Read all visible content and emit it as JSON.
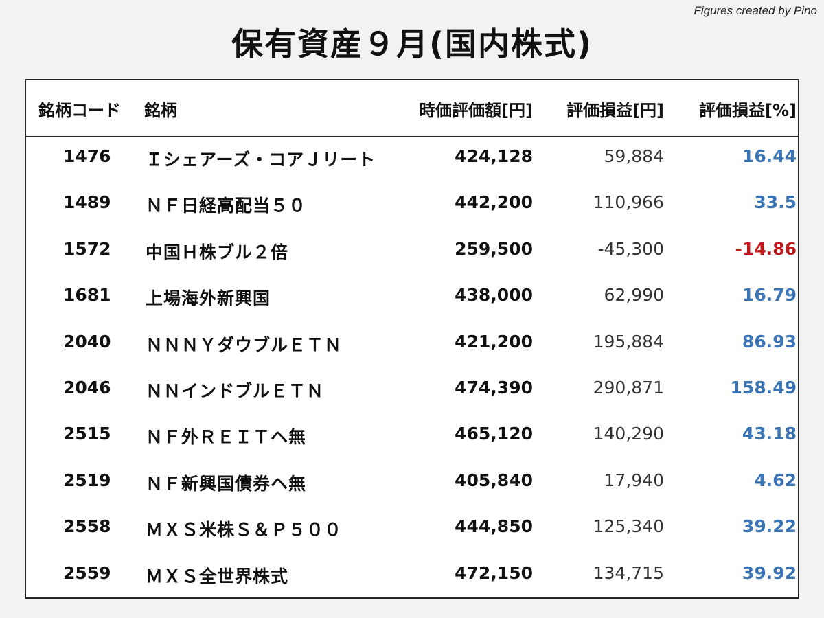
{
  "credit": "Figures created by Pino",
  "title": "保有資産９月(国内株式)",
  "colors": {
    "positive": "#3a74b4",
    "negative": "#c0181a",
    "text": "#111111"
  },
  "table": {
    "headers": [
      "銘柄コード",
      "銘柄",
      "時価評価額[円]",
      "評価損益[円]",
      "評価損益[%]"
    ],
    "rows": [
      {
        "code": "1476",
        "name": "Ｉシェアーズ・コアＪリート",
        "market_value": "424,128",
        "pl_yen": "59,884",
        "pl_pct": "16.44",
        "sign": "pos"
      },
      {
        "code": "1489",
        "name": "ＮＦ日経高配当５０",
        "market_value": "442,200",
        "pl_yen": "110,966",
        "pl_pct": "33.5",
        "sign": "pos"
      },
      {
        "code": "1572",
        "name": "中国Ｈ株ブル２倍",
        "market_value": "259,500",
        "pl_yen": "-45,300",
        "pl_pct": "-14.86",
        "sign": "neg"
      },
      {
        "code": "1681",
        "name": "上場海外新興国",
        "market_value": "438,000",
        "pl_yen": "62,990",
        "pl_pct": "16.79",
        "sign": "pos"
      },
      {
        "code": "2040",
        "name": "ＮＮＮＹダウブルＥＴＮ",
        "market_value": "421,200",
        "pl_yen": "195,884",
        "pl_pct": "86.93",
        "sign": "pos"
      },
      {
        "code": "2046",
        "name": "ＮＮインドブルＥＴＮ",
        "market_value": "474,390",
        "pl_yen": "290,871",
        "pl_pct": "158.49",
        "sign": "pos"
      },
      {
        "code": "2515",
        "name": "ＮＦ外ＲＥＩＴヘ無",
        "market_value": "465,120",
        "pl_yen": "140,290",
        "pl_pct": "43.18",
        "sign": "pos"
      },
      {
        "code": "2519",
        "name": "ＮＦ新興国債券ヘ無",
        "market_value": "405,840",
        "pl_yen": "17,940",
        "pl_pct": "4.62",
        "sign": "pos"
      },
      {
        "code": "2558",
        "name": "ＭＸＳ米株Ｓ＆Ｐ５００",
        "market_value": "444,850",
        "pl_yen": "125,340",
        "pl_pct": "39.22",
        "sign": "pos"
      },
      {
        "code": "2559",
        "name": "ＭＸＳ全世界株式",
        "market_value": "472,150",
        "pl_yen": "134,715",
        "pl_pct": "39.92",
        "sign": "pos"
      }
    ]
  }
}
